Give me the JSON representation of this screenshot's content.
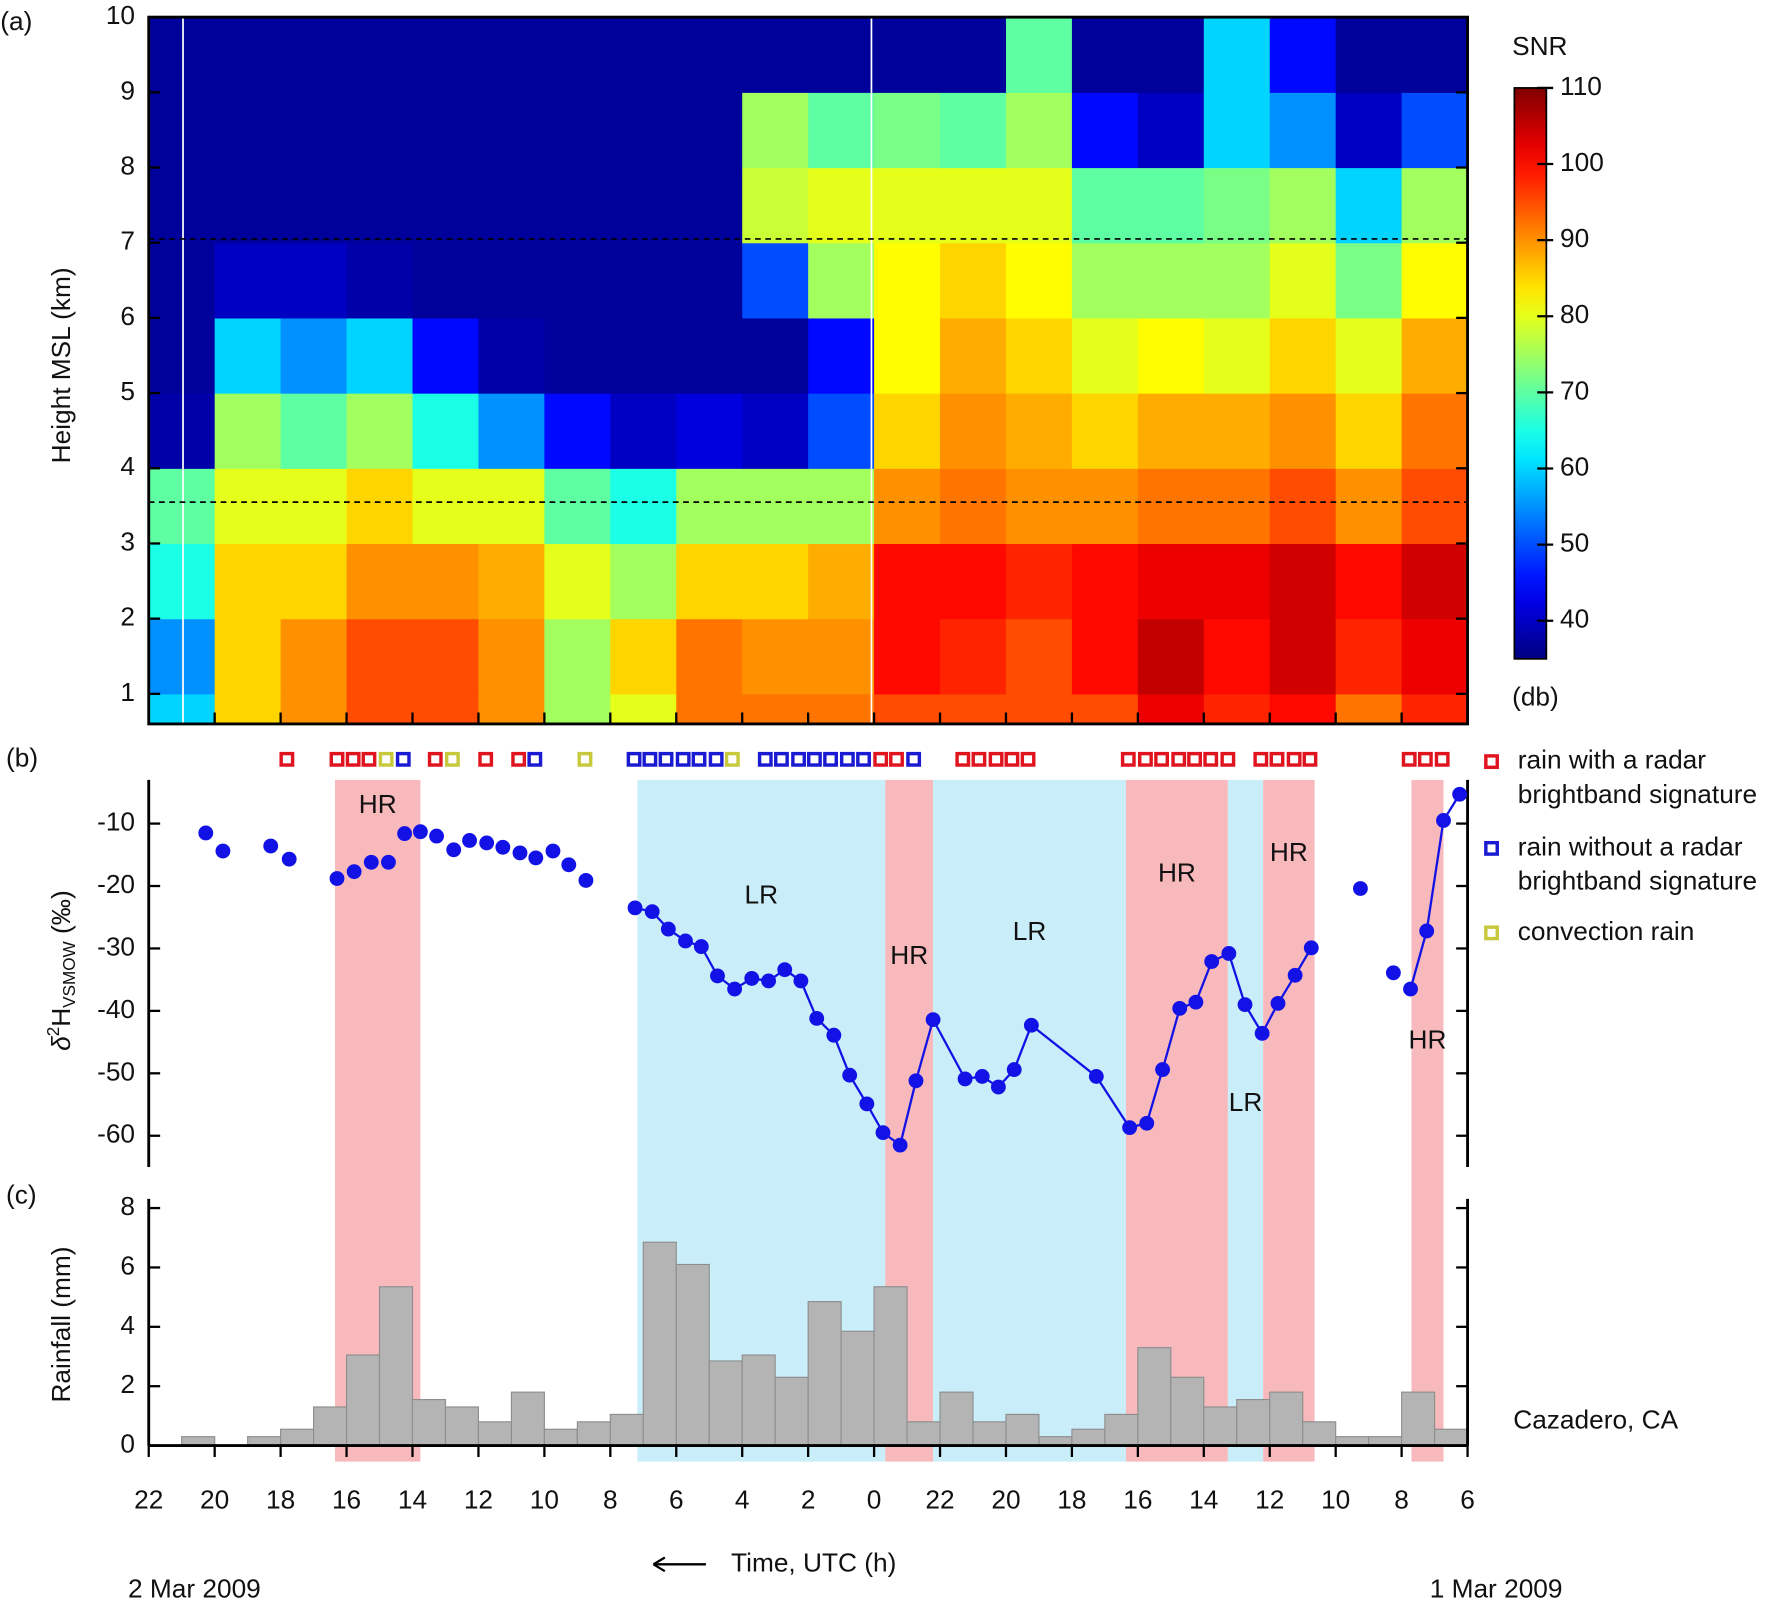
{
  "chart_data": [
    {
      "type": "heatmap",
      "panel_label": "(a)",
      "ylabel": "Height MSL (km)",
      "xlim": [
        46,
        6
      ],
      "ylim": [
        0.6,
        10
      ],
      "yticks": [
        1,
        2,
        3,
        4,
        5,
        6,
        7,
        8,
        9,
        10
      ],
      "colormap": "jet",
      "clim": [
        35,
        110
      ],
      "cticks": [
        40,
        50,
        60,
        70,
        80,
        90,
        100,
        110
      ],
      "colorbar_label": "SNR",
      "colorbar_unit": "(db)",
      "x_edges": [
        46,
        44,
        42,
        40,
        38,
        36,
        34,
        32,
        30,
        28,
        26,
        24,
        22,
        20,
        18,
        16,
        14,
        12,
        10,
        8,
        6
      ],
      "y_edges": [
        0.6,
        1,
        2,
        3,
        4,
        5,
        6,
        7,
        8,
        9,
        10
      ],
      "z": [
        [
          60,
          85,
          90,
          95,
          95,
          90,
          75,
          80,
          92,
          92,
          92,
          95,
          95,
          95,
          95,
          102,
          98,
          100,
          92,
          98
        ],
        [
          55,
          85,
          90,
          95,
          95,
          90,
          75,
          85,
          92,
          90,
          90,
          100,
          98,
          95,
          100,
          105,
          100,
          104,
          98,
          102
        ],
        [
          65,
          85,
          85,
          90,
          90,
          88,
          80,
          75,
          85,
          85,
          88,
          100,
          100,
          98,
          100,
          102,
          102,
          104,
          100,
          104
        ],
        [
          70,
          80,
          80,
          85,
          80,
          80,
          70,
          65,
          75,
          75,
          75,
          90,
          92,
          90,
          90,
          92,
          92,
          95,
          90,
          95
        ],
        [
          38,
          75,
          70,
          75,
          65,
          55,
          45,
          40,
          42,
          40,
          50,
          85,
          90,
          88,
          85,
          88,
          88,
          90,
          85,
          92
        ],
        [
          37,
          60,
          55,
          60,
          45,
          38,
          37,
          37,
          37,
          37,
          45,
          82,
          88,
          85,
          80,
          82,
          80,
          85,
          80,
          88
        ],
        [
          37,
          40,
          40,
          38,
          37,
          37,
          37,
          37,
          37,
          50,
          75,
          82,
          85,
          82,
          75,
          75,
          75,
          80,
          72,
          82
        ],
        [
          37,
          37,
          37,
          37,
          37,
          37,
          37,
          37,
          37,
          78,
          80,
          80,
          80,
          80,
          70,
          70,
          72,
          75,
          60,
          75
        ],
        [
          37,
          37,
          37,
          37,
          37,
          37,
          37,
          37,
          37,
          75,
          70,
          72,
          70,
          75,
          45,
          40,
          60,
          55,
          40,
          50
        ],
        [
          37,
          37,
          37,
          37,
          37,
          37,
          37,
          37,
          37,
          37,
          37,
          37,
          37,
          70,
          37,
          37,
          60,
          45,
          37,
          37
        ]
      ],
      "hlines": [
        7.05,
        3.55
      ],
      "vlines": [
        44.96,
        24.08
      ],
      "vline_color": "#ffffff"
    },
    {
      "type": "scatter",
      "panel_label": "(b)",
      "ylabel": {
        "symbol": "δ",
        "sup": "2",
        "base": "H",
        "sub": "VSMOW",
        "unit": " (‰)"
      },
      "xlim": [
        46,
        6
      ],
      "ylim": [
        -65,
        -3
      ],
      "yticks": [
        -10,
        -20,
        -30,
        -40,
        -50,
        -60
      ],
      "series": [
        {
          "color": "#1212e6",
          "connected": false,
          "x": [
            44.27,
            43.75,
            42.3,
            41.74,
            40.29,
            39.77,
            39.25,
            38.73,
            38.24,
            37.76,
            37.27,
            36.75,
            36.27,
            35.75,
            35.26,
            34.74,
            34.26,
            33.74,
            33.26,
            32.74
          ],
          "values": [
            -11.5,
            -14.4,
            -13.6,
            -15.7,
            -18.8,
            -17.7,
            -16.2,
            -16.2,
            -11.6,
            -11.3,
            -12.0,
            -14.2,
            -12.7,
            -13.1,
            -13.8,
            -14.7,
            -15.5,
            -14.4,
            -16.6,
            -19.1
          ]
        },
        {
          "color": "#1212e6",
          "connected": true,
          "x": [
            31.25,
            30.73,
            30.24,
            29.72,
            29.24,
            28.75,
            28.23,
            27.71,
            27.2,
            26.71,
            26.22,
            25.74,
            25.22,
            24.74,
            24.22,
            23.73,
            23.21,
            22.73,
            22.21,
            21.24,
            20.72,
            20.23,
            19.75,
            19.23,
            17.26,
            16.25,
            15.73,
            15.25,
            14.73,
            14.24,
            13.76,
            13.24,
            12.75,
            12.23,
            11.75,
            11.23,
            10.74
          ],
          "values": [
            -23.5,
            -24.1,
            -26.9,
            -28.8,
            -29.7,
            -34.4,
            -36.5,
            -34.8,
            -35.2,
            -33.4,
            -35.2,
            -41.2,
            -43.9,
            -50.3,
            -54.9,
            -59.5,
            -61.5,
            -51.2,
            -41.4,
            -50.9,
            -50.5,
            -52.2,
            -49.4,
            -42.3,
            -50.5,
            -58.7,
            -58.0,
            -49.4,
            -39.6,
            -38.6,
            -32.1,
            -30.8,
            -39.0,
            -43.6,
            -38.8,
            -34.3,
            -29.9
          ]
        },
        {
          "color": "#1212e6",
          "connected": false,
          "x": [
            9.25,
            8.25
          ],
          "values": [
            -20.4,
            -33.9
          ]
        },
        {
          "color": "#1212e6",
          "connected": true,
          "x": [
            7.73,
            7.24,
            6.73,
            6.24
          ],
          "values": [
            -36.5,
            -27.2,
            -9.5,
            -5.3
          ]
        }
      ],
      "spans": [
        {
          "label": "HR",
          "x": [
            40.35,
            37.76
          ],
          "color": "#f7b9bc"
        },
        {
          "label": "LR",
          "x": [
            31.18,
            23.66
          ],
          "color": "#c9eef9"
        },
        {
          "label": "HR",
          "x": [
            23.66,
            22.21
          ],
          "color": "#f7b9bc"
        },
        {
          "label": "LR",
          "x": [
            22.21,
            16.36
          ],
          "color": "#c9eef9"
        },
        {
          "label": "HR",
          "x": [
            16.36,
            13.27
          ],
          "color": "#f7b9bc"
        },
        {
          "label": "LR",
          "x": [
            13.27,
            12.2
          ],
          "color": "#c9eef9"
        },
        {
          "label": "HR",
          "x": [
            12.2,
            10.64
          ],
          "color": "#f7b9bc"
        },
        {
          "label": "HR",
          "x": [
            7.7,
            6.73
          ],
          "color": "#f7b9bc"
        }
      ],
      "rain_types": [
        {
          "name": [
            "rain with a radar",
            "brightband signature"
          ],
          "color": "#e0141e",
          "x": [
            41.81,
            40.29,
            39.8,
            39.32,
            37.31,
            35.78,
            34.78,
            23.8,
            23.32,
            21.31,
            20.82,
            20.3,
            19.82,
            19.33,
            16.29,
            15.77,
            15.28,
            14.76,
            14.28,
            13.79,
            13.27,
            12.27,
            11.78,
            11.26,
            10.78,
            7.77,
            7.28,
            6.77
          ]
        },
        {
          "name": [
            "rain without a radar",
            "brightband signature"
          ],
          "color": "#1a1ad2",
          "x": [
            38.28,
            34.29,
            31.28,
            30.8,
            30.31,
            29.79,
            29.31,
            28.79,
            27.3,
            26.81,
            26.29,
            25.81,
            25.32,
            24.81,
            24.32,
            22.8
          ]
        },
        {
          "name": [
            "convection rain"
          ],
          "color": "#c8c83c",
          "x": [
            38.8,
            36.79,
            32.77,
            28.3
          ]
        }
      ]
    },
    {
      "type": "histogram",
      "panel_label": "(c)",
      "ylabel": "Rainfall (mm)",
      "xlabel": "Time, UTC (h)",
      "station": "Cazadero, CA",
      "date_left": "2 Mar 2009",
      "date_right": "1 Mar 2009",
      "xlim": [
        46,
        6
      ],
      "ylim": [
        0,
        8
      ],
      "yticks": [
        0,
        2,
        4,
        6,
        8
      ],
      "xticks": [
        {
          "value": 46,
          "label": "22"
        },
        {
          "value": 44,
          "label": "20"
        },
        {
          "value": 42,
          "label": "18"
        },
        {
          "value": 40,
          "label": "16"
        },
        {
          "value": 38,
          "label": "14"
        },
        {
          "value": 36,
          "label": "12"
        },
        {
          "value": 34,
          "label": "10"
        },
        {
          "value": 32,
          "label": "8"
        },
        {
          "value": 30,
          "label": "6"
        },
        {
          "value": 28,
          "label": "4"
        },
        {
          "value": 26,
          "label": "2"
        },
        {
          "value": 24,
          "label": "0"
        },
        22,
        20,
        18,
        16,
        14,
        12,
        10,
        8,
        6
      ],
      "color": "#b4b4b4",
      "bins": [
        45,
        44,
        43,
        42,
        41,
        40,
        39,
        38,
        37,
        36,
        35,
        34,
        33,
        32,
        31,
        30,
        29,
        28,
        27,
        26,
        25,
        24,
        23,
        22,
        21,
        20,
        19,
        18,
        17,
        16,
        15,
        14,
        13,
        12,
        11,
        10,
        9,
        8,
        7,
        6
      ],
      "values": [
        0.3,
        0,
        0.3,
        0.55,
        1.3,
        3.05,
        5.35,
        1.55,
        1.3,
        0.8,
        1.8,
        0.55,
        0.8,
        1.05,
        6.85,
        6.1,
        2.85,
        3.05,
        2.3,
        4.85,
        3.85,
        5.35,
        0.8,
        1.8,
        0.8,
        1.05,
        0.3,
        0.55,
        1.05,
        3.3,
        2.3,
        1.3,
        1.55,
        1.8,
        0.8,
        0.3,
        0.3,
        1.8,
        0.55
      ]
    }
  ]
}
